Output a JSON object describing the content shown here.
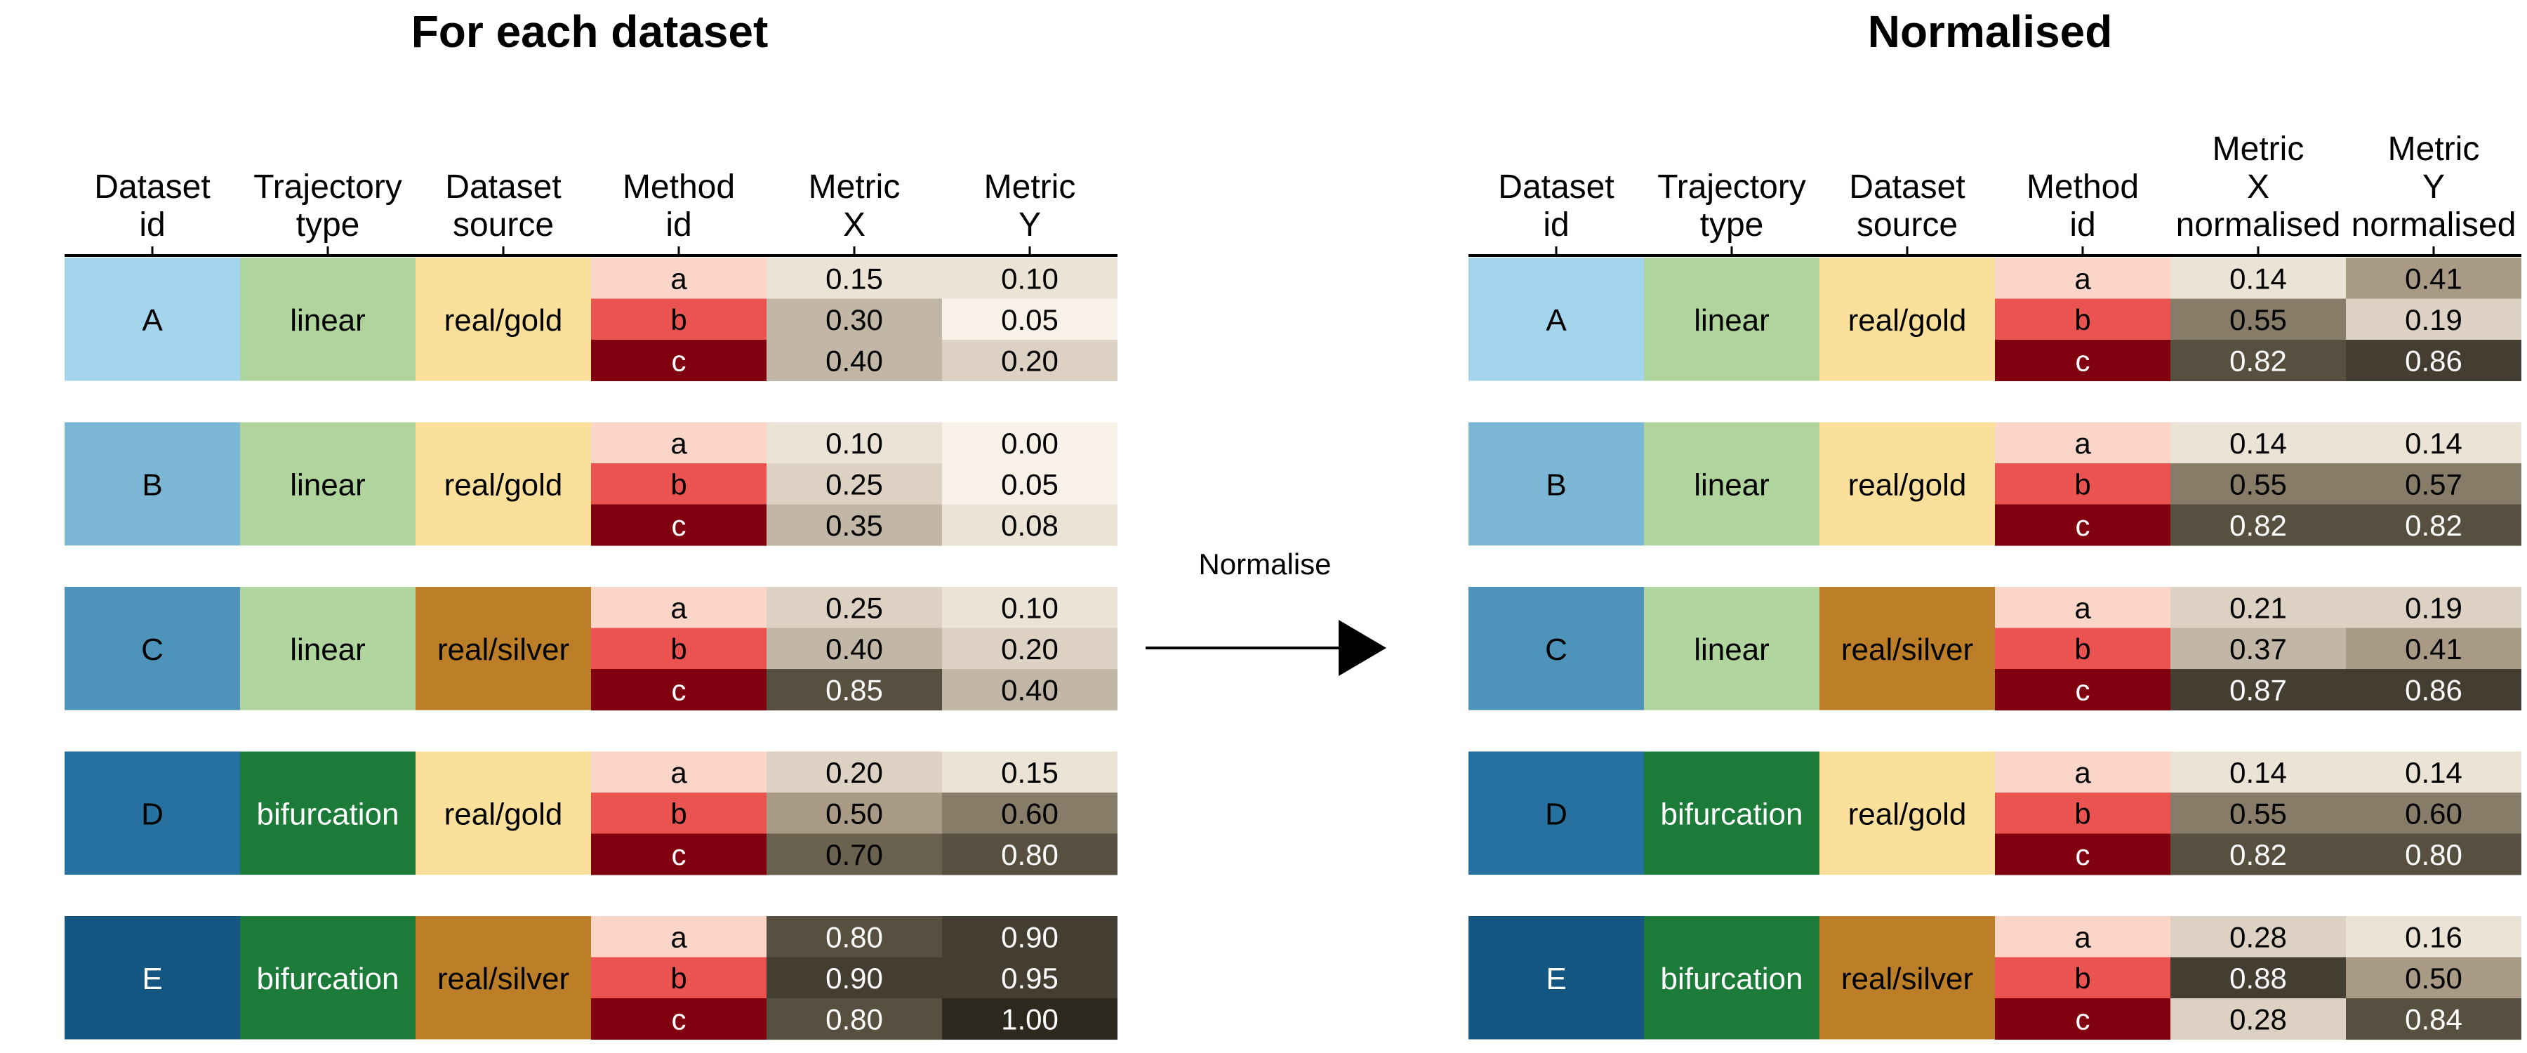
{
  "left_panel": {
    "title": "For each dataset",
    "columns": [
      {
        "key": "dataset",
        "label": [
          "Dataset",
          "id"
        ]
      },
      {
        "key": "trajectory",
        "label": [
          "Trajectory",
          "type"
        ]
      },
      {
        "key": "source",
        "label": [
          "Dataset",
          "source"
        ]
      },
      {
        "key": "method",
        "label": [
          "Method",
          "id"
        ]
      },
      {
        "key": "x",
        "label": [
          "Metric",
          "X"
        ]
      },
      {
        "key": "y",
        "label": [
          "Metric",
          "Y"
        ]
      }
    ],
    "datasets": [
      {
        "id": "A",
        "trajectory": "linear",
        "source": "real/gold",
        "methods": [
          "a",
          "b",
          "c"
        ],
        "x": [
          "0.15",
          "0.30",
          "0.40"
        ],
        "y": [
          "0.10",
          "0.05",
          "0.20"
        ]
      },
      {
        "id": "B",
        "trajectory": "linear",
        "source": "real/gold",
        "methods": [
          "a",
          "b",
          "c"
        ],
        "x": [
          "0.10",
          "0.25",
          "0.35"
        ],
        "y": [
          "0.00",
          "0.05",
          "0.08"
        ]
      },
      {
        "id": "C",
        "trajectory": "linear",
        "source": "real/silver",
        "methods": [
          "a",
          "b",
          "c"
        ],
        "x": [
          "0.25",
          "0.40",
          "0.85"
        ],
        "y": [
          "0.10",
          "0.20",
          "0.40"
        ]
      },
      {
        "id": "D",
        "trajectory": "bifurcation",
        "source": "real/gold",
        "methods": [
          "a",
          "b",
          "c"
        ],
        "x": [
          "0.20",
          "0.50",
          "0.70"
        ],
        "y": [
          "0.15",
          "0.60",
          "0.80"
        ]
      },
      {
        "id": "E",
        "trajectory": "bifurcation",
        "source": "real/silver",
        "methods": [
          "a",
          "b",
          "c"
        ],
        "x": [
          "0.80",
          "0.90",
          "0.80"
        ],
        "y": [
          "0.90",
          "0.95",
          "1.00"
        ]
      }
    ]
  },
  "right_panel": {
    "title": "Normalised",
    "columns": [
      {
        "key": "dataset",
        "label": [
          "Dataset",
          "id"
        ]
      },
      {
        "key": "trajectory",
        "label": [
          "Trajectory",
          "type"
        ]
      },
      {
        "key": "source",
        "label": [
          "Dataset",
          "source"
        ]
      },
      {
        "key": "method",
        "label": [
          "Method",
          "id"
        ]
      },
      {
        "key": "x",
        "label": [
          "Metric",
          "X",
          "normalised"
        ]
      },
      {
        "key": "y",
        "label": [
          "Metric",
          "Y",
          "normalised"
        ]
      }
    ],
    "datasets": [
      {
        "id": "A",
        "trajectory": "linear",
        "source": "real/gold",
        "methods": [
          "a",
          "b",
          "c"
        ],
        "x": [
          "0.14",
          "0.55",
          "0.82"
        ],
        "y": [
          "0.41",
          "0.19",
          "0.86"
        ]
      },
      {
        "id": "B",
        "trajectory": "linear",
        "source": "real/gold",
        "methods": [
          "a",
          "b",
          "c"
        ],
        "x": [
          "0.14",
          "0.55",
          "0.82"
        ],
        "y": [
          "0.14",
          "0.57",
          "0.82"
        ]
      },
      {
        "id": "C",
        "trajectory": "linear",
        "source": "real/silver",
        "methods": [
          "a",
          "b",
          "c"
        ],
        "x": [
          "0.21",
          "0.37",
          "0.87"
        ],
        "y": [
          "0.19",
          "0.41",
          "0.86"
        ]
      },
      {
        "id": "D",
        "trajectory": "bifurcation",
        "source": "real/gold",
        "methods": [
          "a",
          "b",
          "c"
        ],
        "x": [
          "0.14",
          "0.55",
          "0.82"
        ],
        "y": [
          "0.14",
          "0.60",
          "0.80"
        ]
      },
      {
        "id": "E",
        "trajectory": "bifurcation",
        "source": "real/silver",
        "methods": [
          "a",
          "b",
          "c"
        ],
        "x": [
          "0.28",
          "0.88",
          "0.28"
        ],
        "y": [
          "0.16",
          "0.50",
          "0.84"
        ]
      }
    ]
  },
  "arrow": {
    "label": "Normalise"
  },
  "colors": {
    "dataset": {
      "A": "#a2d4ec",
      "B": "#7cb6d5",
      "C": "#4d93ba",
      "D": "#2671a0",
      "E": "#125681"
    },
    "trajectory": {
      "linear": "#b0d49e",
      "bifurcation": "#1c7b39"
    },
    "source": {
      "real/gold": "#fbe09c",
      "real/silver": "#bc7e27"
    },
    "method": {
      "a": "#fbd6c8",
      "b": "#eb5350",
      "c": "#800010"
    },
    "metric_scale": [
      "#f8f1e7",
      "#ece3d7",
      "#dcd1c2",
      "#c2b7a6",
      "#a89a85",
      "#877c68",
      "#6b614f",
      "#575041",
      "#443d31",
      "#2e291f"
    ],
    "text_dark": "#000000",
    "text_light": "#ffffff"
  }
}
